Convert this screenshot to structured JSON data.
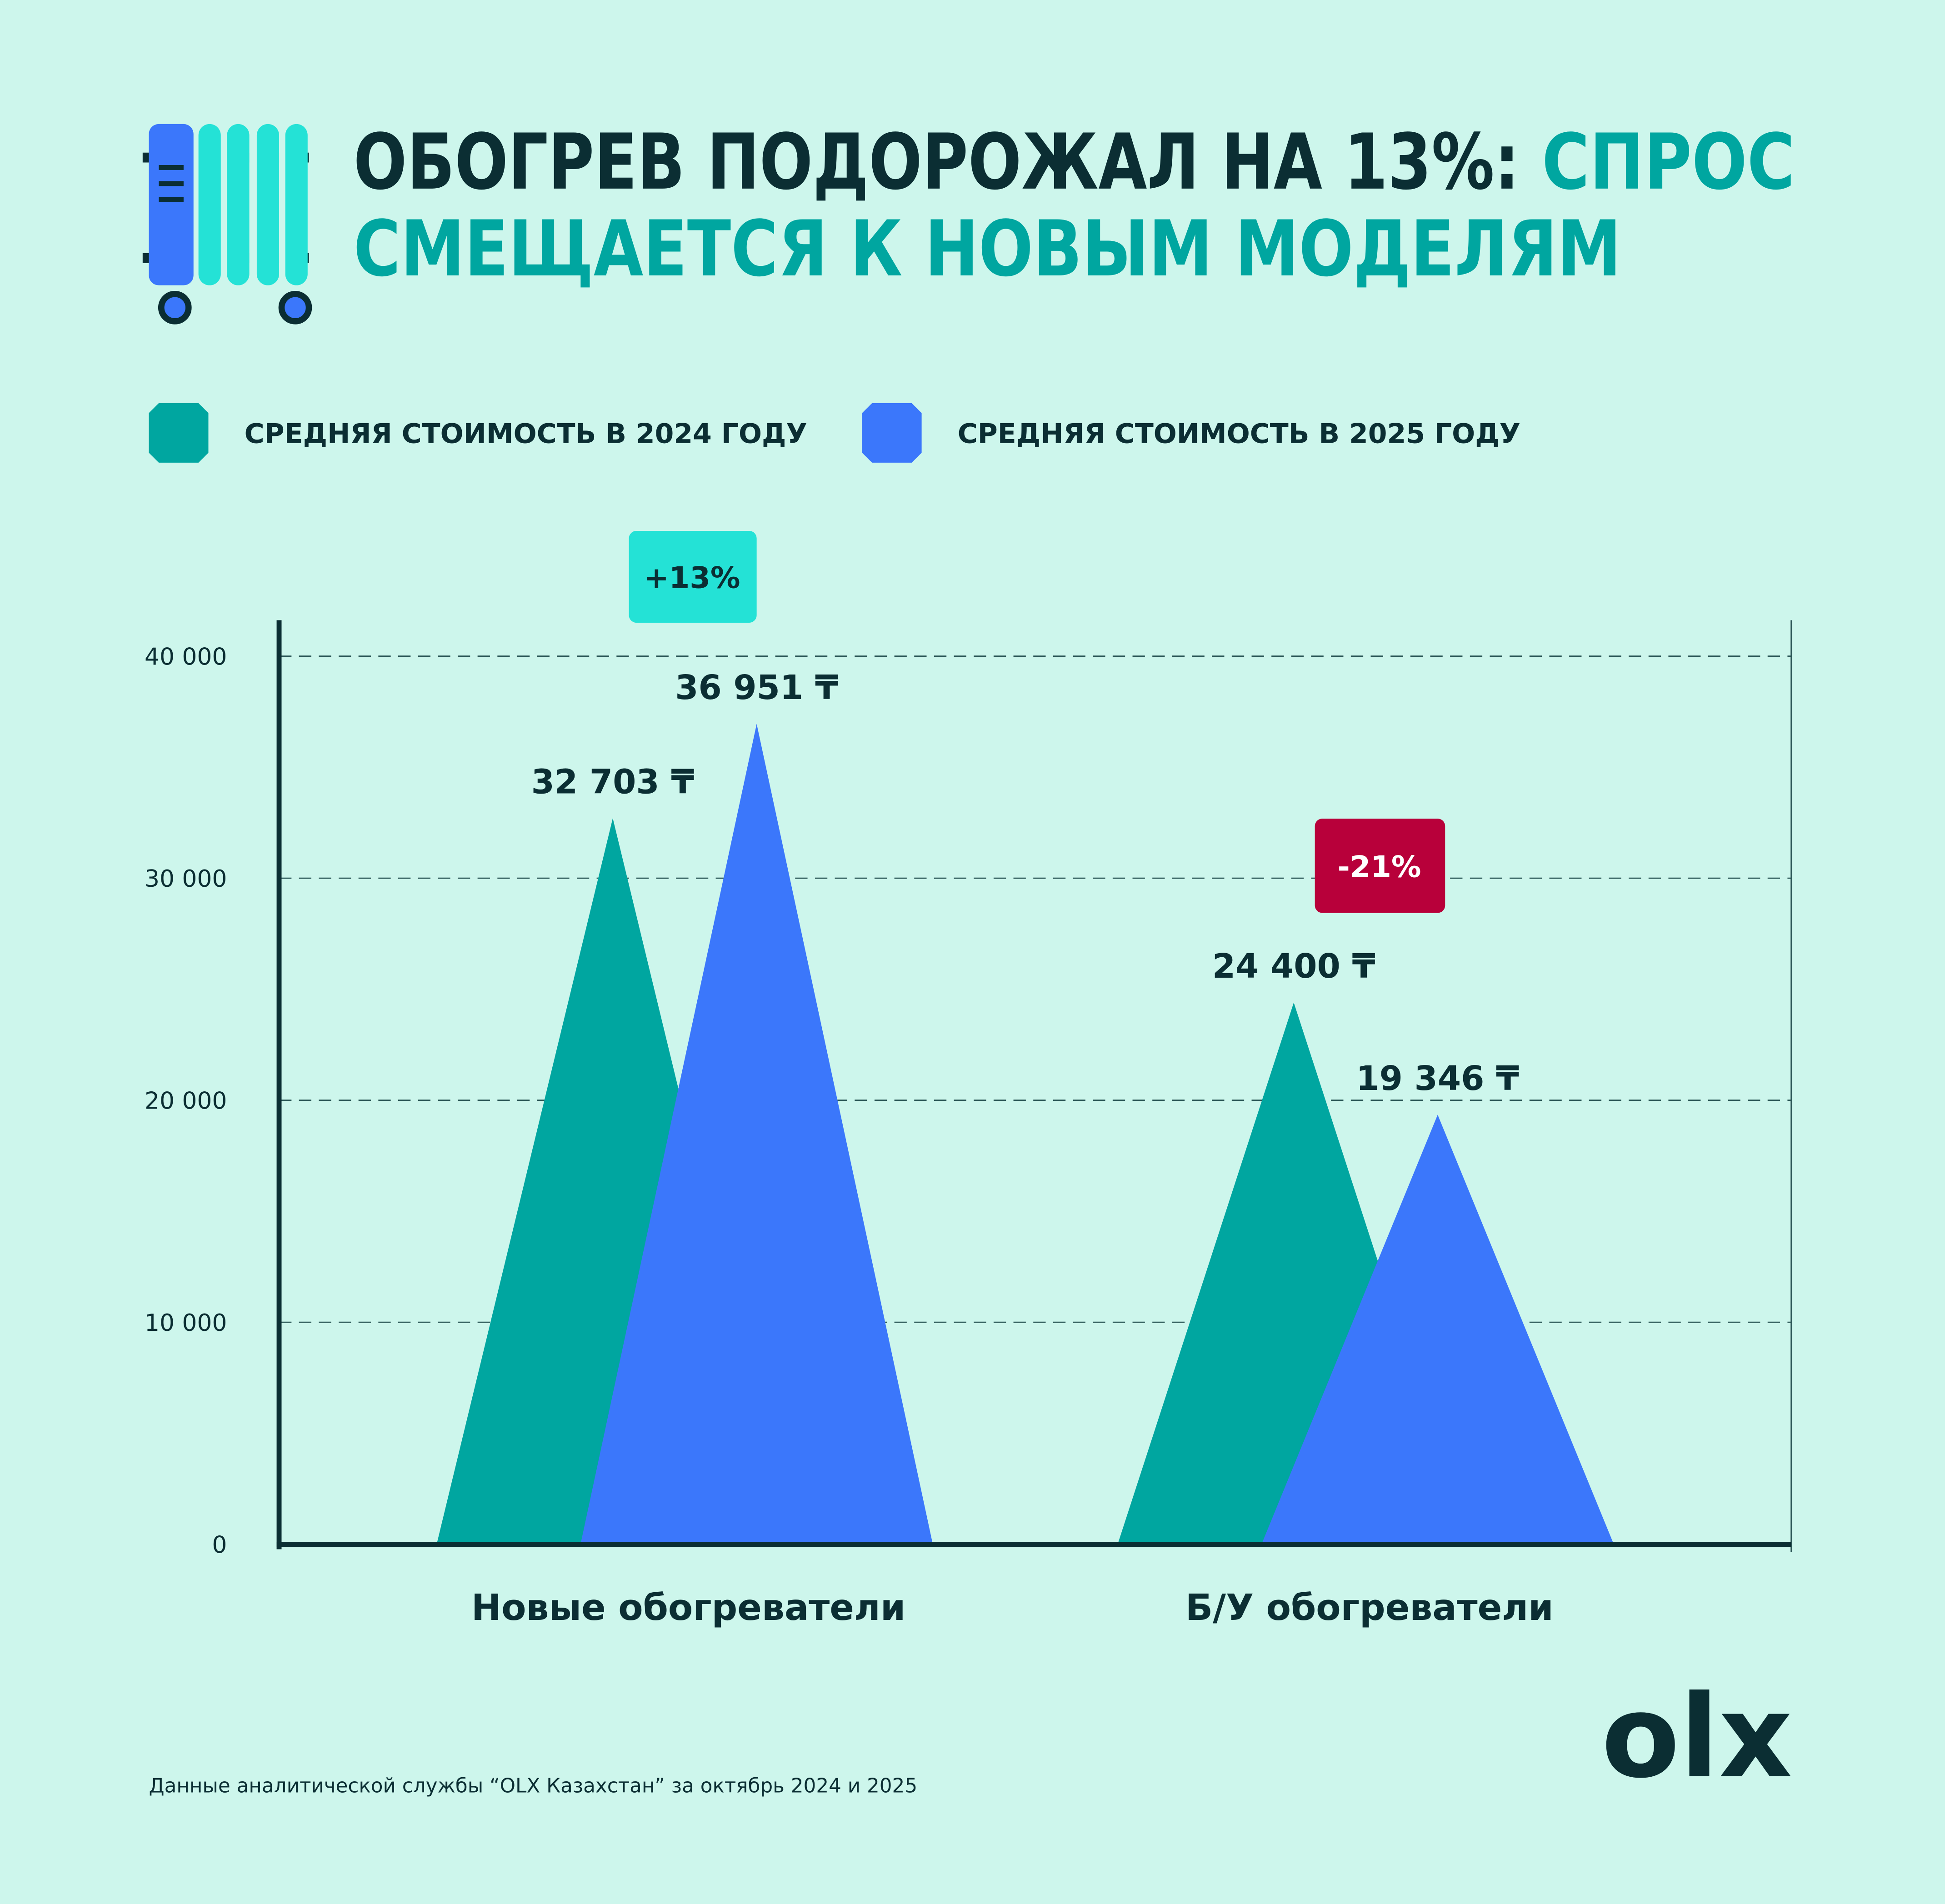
{
  "title_parts": [
    "ОБОГРЕВ ПОДОРОЖАЛ НА 13%:",
    "СПРОС",
    "СМЕЩАЕТСЯ К НОВЫМ МОДЕЛЯМ"
  ],
  "chart_data": {
    "type": "triangle",
    "categories": [
      "Новые обогреватели",
      "Б/У обогреватели"
    ],
    "series": [
      {
        "name": "СРЕДНЯЯ СТОИМОСТЬ В 2024 ГОДУ",
        "color": "#00a6a0",
        "values": [
          32703,
          24400
        ],
        "value_labels": [
          "32 703 ₸",
          "24 400 ₸"
        ]
      },
      {
        "name": "СРЕДНЯЯ СТОИМОСТЬ В 2025 ГОДУ",
        "color": "#3b77fb",
        "values": [
          36951,
          19346
        ],
        "value_labels": [
          "36 951 ₸",
          "19 346 ₸"
        ]
      }
    ],
    "ylim": [
      0,
      40000
    ],
    "yticks": [
      0,
      {
        "value": 10000,
        "label": "10 000"
      },
      {
        "value": 20000,
        "label": "20 000"
      },
      {
        "value": 30000,
        "label": "30 000"
      },
      {
        "value": 40000,
        "label": "40 000"
      }
    ],
    "grid": true,
    "annotations": [
      "+13%",
      "-21%"
    ]
  },
  "source": "Данные аналитической службы “OLX Казахстан” за октябрь 2024 и 2025",
  "logo": "olx"
}
